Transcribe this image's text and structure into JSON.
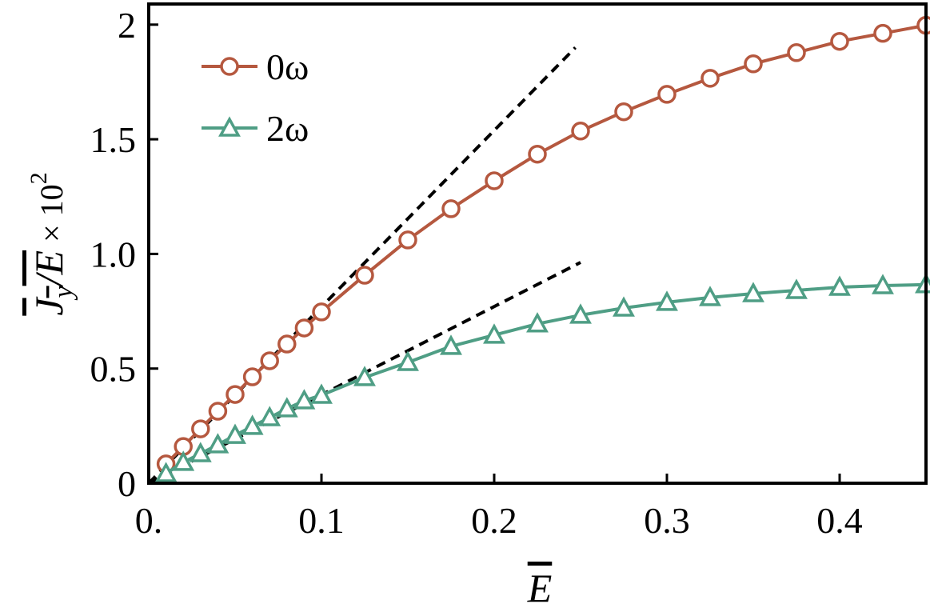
{
  "chart_data": {
    "type": "line",
    "x_label": "E",
    "y_label": {
      "main": "J",
      "sub": "y",
      "rest": "/E",
      "times": " × 10",
      "sup": "2"
    },
    "x": [
      0.01,
      0.02,
      0.03,
      0.04,
      0.05,
      0.06,
      0.07,
      0.08,
      0.09,
      0.1,
      0.125,
      0.15,
      0.175,
      0.2,
      0.225,
      0.25,
      0.275,
      0.3,
      0.325,
      0.35,
      0.375,
      0.4,
      0.425,
      0.45
    ],
    "series": [
      {
        "name": "0ω",
        "color": "#b5583f",
        "marker": "circle",
        "values": [
          0.084,
          0.16,
          0.237,
          0.314,
          0.387,
          0.464,
          0.534,
          0.607,
          0.677,
          0.747,
          0.907,
          1.061,
          1.197,
          1.319,
          1.435,
          1.536,
          1.62,
          1.696,
          1.766,
          1.829,
          1.878,
          1.927,
          1.962,
          1.997
        ]
      },
      {
        "name": "2ω",
        "color": "#4f9e85",
        "marker": "triangle",
        "values": [
          0.042,
          0.091,
          0.129,
          0.168,
          0.209,
          0.248,
          0.286,
          0.325,
          0.36,
          0.384,
          0.461,
          0.527,
          0.597,
          0.646,
          0.695,
          0.733,
          0.764,
          0.789,
          0.81,
          0.827,
          0.841,
          0.855,
          0.862,
          0.866
        ]
      }
    ],
    "fits": [
      {
        "x": [
          0,
          0.247
        ],
        "values": [
          0,
          1.9
        ]
      },
      {
        "x": [
          0,
          0.25
        ],
        "values": [
          0,
          0.963
        ]
      }
    ],
    "xlim": [
      0,
      0.45
    ],
    "ylim": [
      0,
      2.09
    ],
    "xticks": [
      {
        "value": 0,
        "label": "0."
      },
      0.1,
      0.2,
      0.3,
      0.4
    ],
    "yticks": [
      0,
      0.5,
      {
        "value": 1,
        "label": "1.0"
      },
      1.5,
      2
    ],
    "legend": "upper left"
  }
}
